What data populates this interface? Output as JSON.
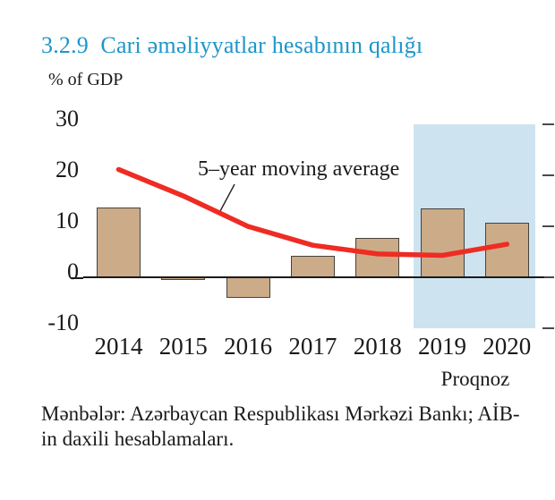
{
  "page": {
    "title": "3.2.9  Cari əməliyyatlar hesabının qalığı",
    "title_color": "#1d96c9",
    "source_line1": "Mənbələr: Azərbaycan Respublikası Mərkəzi Bankı; AİB-",
    "source_line2": "in daxili hesablamaları."
  },
  "chart_data": {
    "type": "bar",
    "title": "3.2.9  Cari əməliyyatlar hesabının qalığı",
    "ylabel": "% of GDP",
    "xlabel": "",
    "categories": [
      "2014",
      "2015",
      "2016",
      "2017",
      "2018",
      "2019",
      "2020"
    ],
    "series": [
      {
        "name": "Cari əməliyyatlar hesabının qalığı",
        "type": "bar",
        "values": [
          13.8,
          -0.6,
          -4.1,
          4.2,
          7.8,
          13.6,
          10.7
        ]
      },
      {
        "name": "5–year moving average",
        "type": "line",
        "values": [
          21.2,
          16.0,
          10.0,
          6.3,
          4.6,
          4.3,
          6.5
        ]
      }
    ],
    "yticks": [
      30,
      20,
      10,
      0,
      -10
    ],
    "ylim": [
      -10,
      30
    ],
    "grid": false,
    "legend_position": "none",
    "annotation": "5–year moving average",
    "forecast_band": {
      "label": "Proqnoz",
      "categories": [
        "2019",
        "2020"
      ]
    },
    "bar_color": "#ccab88",
    "bar_border_color": "#45433d",
    "line_color": "#ee2c23",
    "band_color": "#cde4f0"
  }
}
